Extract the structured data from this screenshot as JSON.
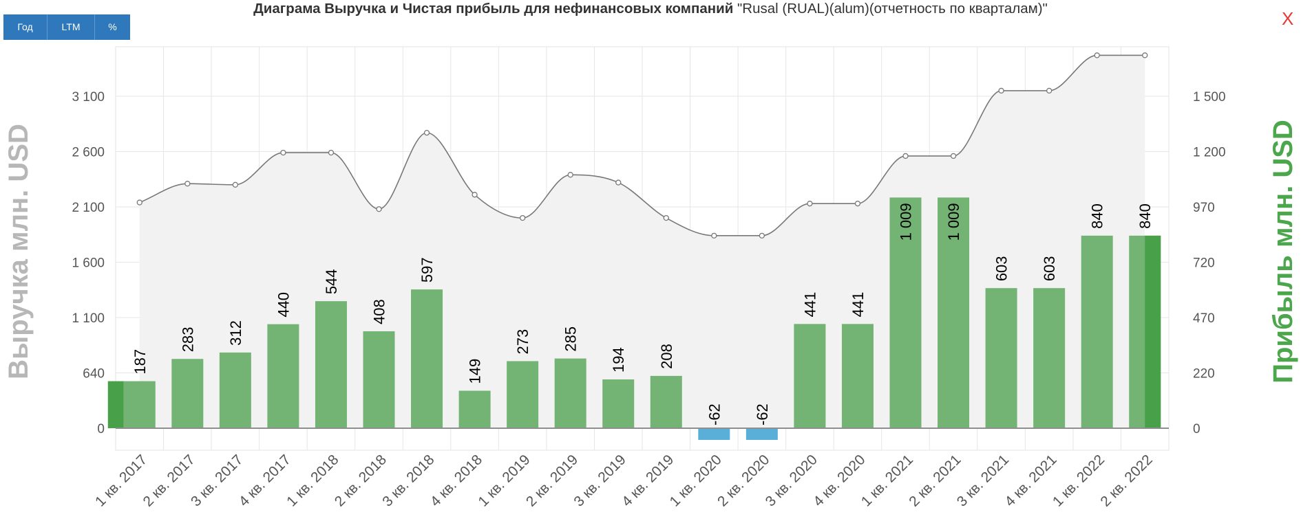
{
  "title_bold": "Диаграма Выручка и Чистая прибыль для нефинансовых компаний",
  "title_rest": "\"Rusal (RUAL)(alum)(отчетность по кварталам)\"",
  "buttons": {
    "year": "Год",
    "ltm": "LTM",
    "percent": "%"
  },
  "close_label": "X",
  "colors": {
    "bar_positive": "#73b373",
    "bar_negative": "#5aafd8",
    "bar_highlight": "#48a148",
    "revenue_line": "#777777",
    "revenue_area": "#f2f2f2",
    "left_axis_label": "#b7b7b7",
    "right_axis_label": "#4ca64c",
    "button": "#2e78bb",
    "close": "#e53935"
  },
  "chart_data": {
    "type": "bar",
    "categories": [
      "1 кв. 2017",
      "2 кв. 2017",
      "3 кв. 2017",
      "4 кв. 2017",
      "1 кв. 2018",
      "2 кв. 2018",
      "3 кв. 2018",
      "4 кв. 2018",
      "1 кв. 2019",
      "2 кв. 2019",
      "3 кв. 2019",
      "4 кв. 2019",
      "1 кв. 2020",
      "2 кв. 2020",
      "3 кв. 2020",
      "4 кв. 2020",
      "1 кв. 2021",
      "2 кв. 2021",
      "3 кв. 2021",
      "4 кв. 2021",
      "1 кв. 2022",
      "2 кв. 2022"
    ],
    "ylabel_left": "Выручка млн. USD",
    "ylabel_right": "Прибыль млн. USD",
    "left_ticks": [
      "0",
      "640",
      "1 100",
      "1 600",
      "2 100",
      "2 600",
      "3 100"
    ],
    "right_ticks": [
      "0",
      "220",
      "470",
      "720",
      "970",
      "1 200",
      "1 500"
    ],
    "series": [
      {
        "kind": "bars",
        "axis": "right",
        "values": [
          187,
          283,
          312,
          440,
          544,
          408,
          597,
          149,
          273,
          285,
          194,
          208,
          -62,
          -62,
          441,
          441,
          1009,
          1009,
          603,
          603,
          840,
          840
        ],
        "labels": [
          "187",
          "283",
          "312",
          "440",
          "544",
          "408",
          "597",
          "149",
          "273",
          "285",
          "194",
          "208",
          "-62",
          "-62",
          "441",
          "441",
          "1 009",
          "1 009",
          "603",
          "603",
          "840",
          "840"
        ]
      },
      {
        "kind": "line",
        "axis": "left",
        "values": [
          2140,
          2310,
          2300,
          2590,
          2590,
          2080,
          2770,
          2210,
          2000,
          2390,
          2320,
          2000,
          1840,
          1840,
          2130,
          2130,
          2560,
          2560,
          3150,
          3150,
          3470,
          3470
        ]
      }
    ],
    "grid": true,
    "legend": "none"
  }
}
